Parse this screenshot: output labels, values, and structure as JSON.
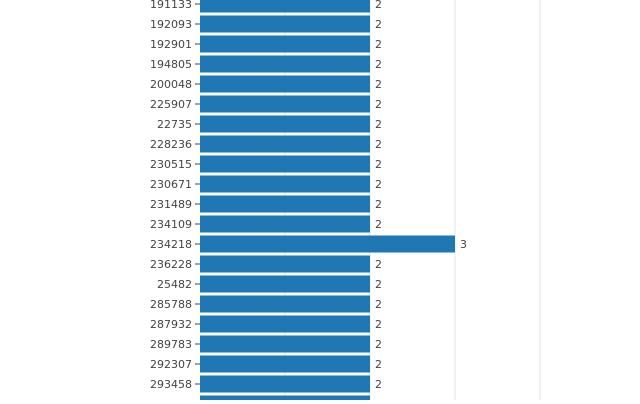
{
  "chart_data": {
    "type": "bar",
    "orientation": "horizontal",
    "categories": [
      "191133",
      "192093",
      "192901",
      "194805",
      "200048",
      "225907",
      "22735",
      "228236",
      "230515",
      "230671",
      "231489",
      "234109",
      "234218",
      "236228",
      "25482",
      "285788",
      "287932",
      "289783",
      "292307",
      "293458",
      ""
    ],
    "values": [
      2,
      2,
      2,
      2,
      2,
      2,
      2,
      2,
      2,
      2,
      2,
      2,
      3,
      2,
      2,
      2,
      2,
      2,
      2,
      2,
      2
    ],
    "data_labels": [
      "2",
      "2",
      "2",
      "2",
      "2",
      "2",
      "2",
      "2",
      "2",
      "2",
      "2",
      "2",
      "3",
      "2",
      "2",
      "2",
      "2",
      "2",
      "2",
      "2",
      ""
    ],
    "xlim": [
      0,
      4
    ],
    "grid": true,
    "bar_color": "#1f77b4",
    "grid_color": "#e5e5e5"
  }
}
